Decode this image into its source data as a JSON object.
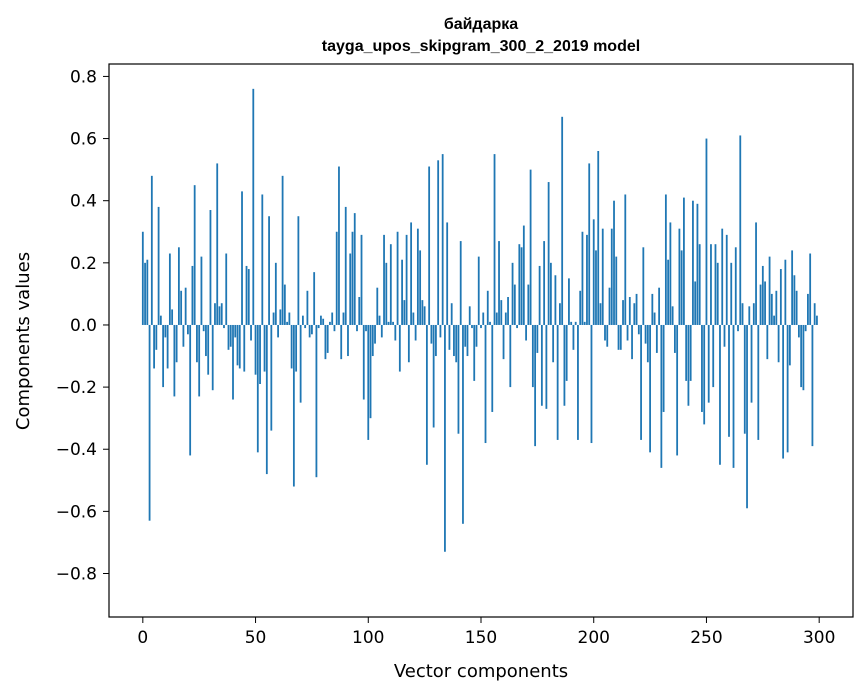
{
  "chart_data": {
    "type": "bar",
    "title": "байдарка",
    "subtitle": "tayga_upos_skipgram_300_2_2019 model",
    "xlabel": "Vector components",
    "ylabel": "Components values",
    "xlim": [
      -15,
      315
    ],
    "ylim": [
      -0.94,
      0.84
    ],
    "xticks": [
      0,
      50,
      100,
      150,
      200,
      250,
      300
    ],
    "xtick_labels": [
      "0",
      "50",
      "100",
      "150",
      "200",
      "250",
      "300"
    ],
    "yticks": [
      -0.8,
      -0.6,
      -0.4,
      -0.2,
      0.0,
      0.2,
      0.4,
      0.6,
      0.8
    ],
    "ytick_labels": [
      "−0.8",
      "−0.6",
      "−0.4",
      "−0.2",
      "0.0",
      "0.2",
      "0.4",
      "0.6",
      "0.8"
    ],
    "grid": false,
    "legend": "none",
    "bar_color": "#1f77b4",
    "values": [
      0.3,
      0.2,
      0.21,
      -0.63,
      0.48,
      -0.14,
      -0.08,
      0.38,
      0.03,
      -0.2,
      -0.04,
      -0.14,
      0.23,
      0.05,
      -0.23,
      -0.12,
      0.25,
      0.11,
      -0.07,
      0.12,
      -0.03,
      -0.42,
      0.19,
      0.45,
      -0.12,
      -0.23,
      0.22,
      -0.02,
      -0.1,
      -0.16,
      0.37,
      -0.21,
      0.07,
      0.52,
      0.06,
      0.07,
      -0.01,
      0.23,
      -0.08,
      -0.07,
      -0.24,
      -0.04,
      -0.13,
      -0.14,
      0.43,
      -0.15,
      0.19,
      0.18,
      -0.05,
      0.76,
      -0.16,
      -0.41,
      -0.19,
      0.42,
      -0.15,
      -0.48,
      0.35,
      -0.34,
      0.04,
      0.2,
      -0.04,
      0.05,
      0.48,
      0.13,
      0.01,
      0.04,
      -0.14,
      -0.52,
      -0.15,
      0.35,
      -0.25,
      0.03,
      -0.01,
      0.11,
      -0.04,
      -0.03,
      0.17,
      -0.49,
      -0.01,
      0.03,
      0.02,
      -0.11,
      -0.09,
      0.01,
      0.04,
      -0.02,
      0.3,
      0.51,
      -0.11,
      0.04,
      0.38,
      -0.1,
      0.23,
      0.3,
      0.36,
      -0.02,
      0.09,
      0.29,
      -0.24,
      -0.02,
      -0.37,
      -0.3,
      -0.1,
      -0.06,
      0.12,
      0.03,
      -0.04,
      0.29,
      0.2,
      0.01,
      0.26,
      0.01,
      -0.05,
      0.3,
      -0.15,
      0.21,
      0.08,
      0.29,
      -0.12,
      0.33,
      0.04,
      -0.05,
      0.31,
      0.24,
      0.08,
      0.06,
      -0.45,
      0.51,
      -0.06,
      -0.33,
      -0.1,
      0.53,
      -0.04,
      0.55,
      -0.73,
      0.33,
      -0.08,
      0.07,
      -0.1,
      -0.12,
      -0.35,
      0.27,
      -0.64,
      -0.07,
      -0.1,
      0.06,
      -0.01,
      -0.18,
      -0.07,
      0.22,
      -0.01,
      0.04,
      -0.38,
      0.11,
      0.01,
      -0.28,
      0.55,
      0.04,
      0.27,
      0.08,
      -0.11,
      0.04,
      0.09,
      -0.2,
      0.2,
      0.13,
      -0.01,
      0.26,
      0.25,
      0.32,
      -0.05,
      0.13,
      0.5,
      -0.2,
      -0.39,
      -0.09,
      0.19,
      -0.26,
      0.27,
      -0.27,
      0.46,
      0.2,
      -0.12,
      0.16,
      -0.37,
      0.07,
      0.67,
      -0.26,
      -0.18,
      0.15,
      0.01,
      -0.08,
      0.01,
      -0.37,
      0.11,
      0.3,
      0.01,
      0.29,
      0.52,
      -0.38,
      0.34,
      0.24,
      0.56,
      0.07,
      0.31,
      -0.05,
      -0.07,
      0.12,
      0.31,
      0.4,
      0.22,
      -0.08,
      -0.08,
      0.08,
      0.42,
      -0.05,
      0.09,
      -0.11,
      0.07,
      0.1,
      -0.03,
      -0.37,
      0.25,
      -0.06,
      -0.12,
      -0.41,
      0.1,
      0.04,
      -0.09,
      0.12,
      -0.46,
      -0.28,
      0.42,
      0.21,
      0.33,
      0.06,
      -0.09,
      -0.42,
      0.31,
      0.24,
      0.41,
      -0.18,
      -0.26,
      -0.18,
      0.4,
      0.14,
      0.39,
      0.26,
      -0.28,
      -0.32,
      0.6,
      -0.25,
      0.26,
      -0.2,
      0.26,
      0.2,
      -0.45,
      0.31,
      -0.07,
      0.29,
      -0.36,
      0.2,
      -0.46,
      0.25,
      -0.02,
      0.61,
      0.07,
      -0.35,
      -0.59,
      0.06,
      -0.25,
      0.07,
      0.33,
      -0.37,
      0.13,
      0.19,
      0.14,
      -0.11,
      0.22,
      0.1,
      0.03,
      0.11,
      -0.12,
      0.18,
      -0.43,
      0.21,
      -0.41,
      -0.13,
      0.24,
      0.16,
      0.11,
      -0.04,
      -0.2,
      -0.21,
      -0.02,
      0.1,
      0.23,
      -0.39,
      0.07,
      0.03
    ]
  }
}
